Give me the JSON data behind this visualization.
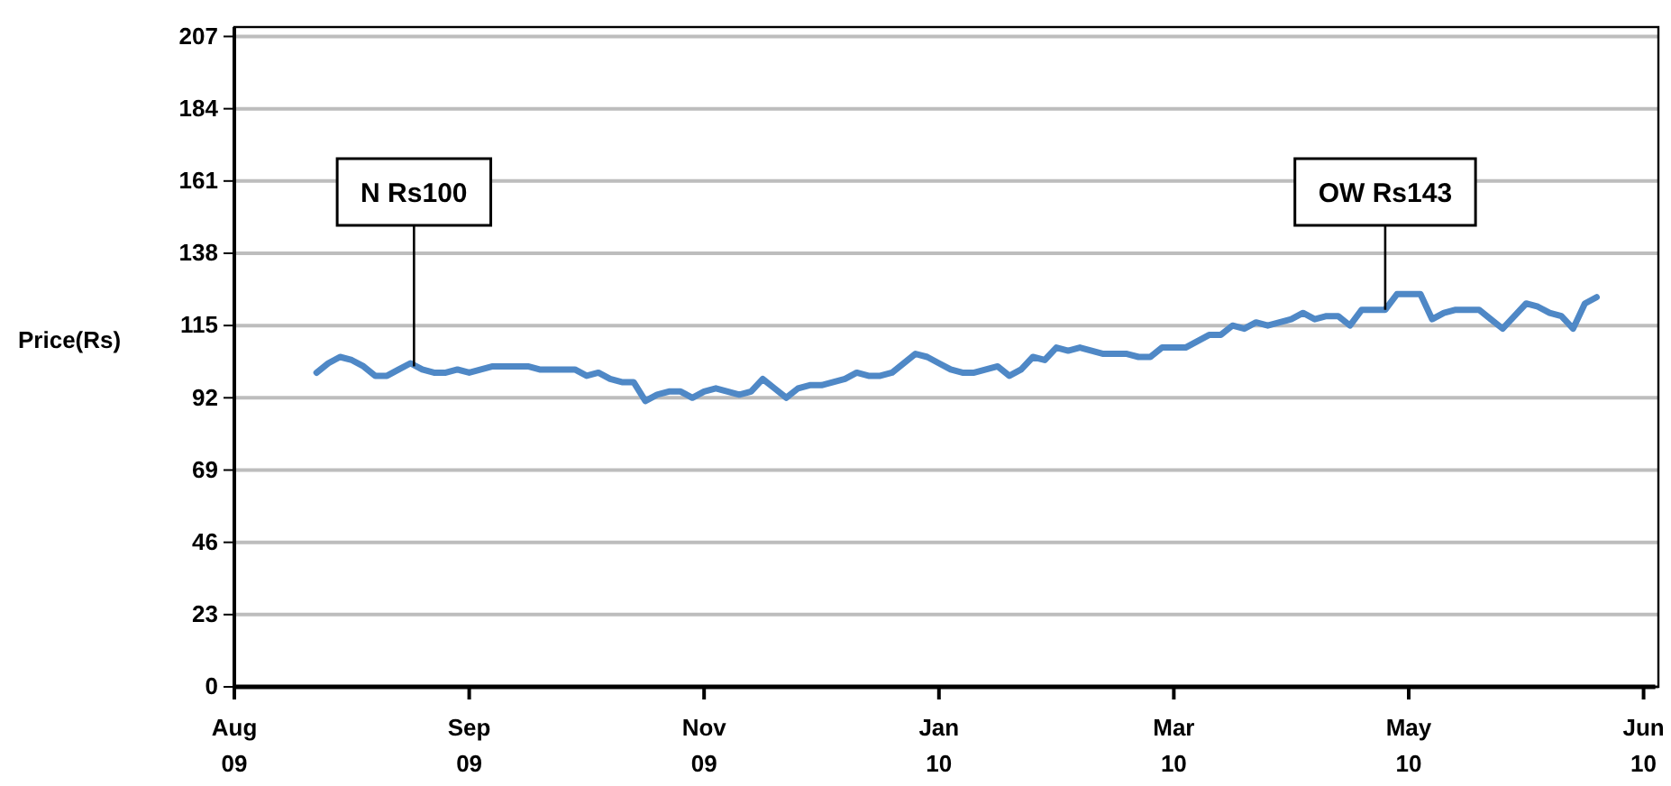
{
  "chart_data": {
    "type": "line",
    "ylabel": "Price(Rs)",
    "categories": [
      "Aug 09",
      null,
      null,
      null,
      null,
      null,
      null,
      null,
      null,
      null,
      null,
      null,
      null,
      null,
      null,
      null,
      null,
      null,
      null,
      null,
      "Sep 09",
      null,
      null,
      null,
      null,
      null,
      null,
      null,
      null,
      null,
      null,
      null,
      null,
      null,
      null,
      null,
      null,
      null,
      null,
      null,
      "Nov 09",
      null,
      null,
      null,
      null,
      null,
      null,
      null,
      null,
      null,
      null,
      null,
      null,
      null,
      null,
      null,
      null,
      null,
      null,
      null,
      "Jan 10",
      null,
      null,
      null,
      null,
      null,
      null,
      null,
      null,
      null,
      null,
      null,
      null,
      null,
      null,
      null,
      null,
      null,
      null,
      null,
      "Mar 10",
      null,
      null,
      null,
      null,
      null,
      null,
      null,
      null,
      null,
      null,
      null,
      null,
      null,
      null,
      null,
      null,
      null,
      null,
      null,
      "May 10",
      null,
      null,
      null,
      null,
      null,
      null,
      null,
      null,
      null,
      null,
      null,
      null,
      null,
      null,
      null,
      null,
      null,
      null,
      null,
      "Jun 10",
      null
    ],
    "ylim": [
      0,
      210
    ],
    "yticks": [
      0,
      23,
      46,
      69,
      92,
      115,
      138,
      161,
      184,
      207
    ],
    "grid": "y",
    "series": [
      {
        "color": "#4f88c6",
        "values": [
          null,
          null,
          null,
          null,
          null,
          null,
          null,
          100,
          103,
          105,
          104,
          102,
          99,
          99,
          101,
          103,
          101,
          100,
          100,
          101,
          100,
          101,
          102,
          102,
          102,
          102,
          101,
          101,
          101,
          101,
          99,
          100,
          98,
          97,
          97,
          91,
          93,
          94,
          94,
          92,
          94,
          95,
          94,
          93,
          94,
          98,
          95,
          92,
          95,
          96,
          96,
          97,
          98,
          100,
          99,
          99,
          100,
          103,
          106,
          105,
          103,
          101,
          100,
          100,
          101,
          102,
          99,
          101,
          105,
          104,
          108,
          107,
          108,
          107,
          106,
          106,
          106,
          105,
          105,
          108,
          108,
          108,
          110,
          112,
          112,
          115,
          114,
          116,
          115,
          116,
          117,
          119,
          117,
          118,
          118,
          115,
          120,
          120,
          120,
          125,
          125,
          125,
          117,
          119,
          120,
          120,
          120,
          117,
          114,
          118,
          122,
          121,
          119,
          118,
          114,
          122,
          124,
          null,
          null,
          null,
          null,
          null
        ]
      }
    ],
    "annotations": [
      {
        "text": "N Rs100",
        "y": 102
      },
      {
        "text": "OW Rs143",
        "y": 120
      }
    ]
  }
}
